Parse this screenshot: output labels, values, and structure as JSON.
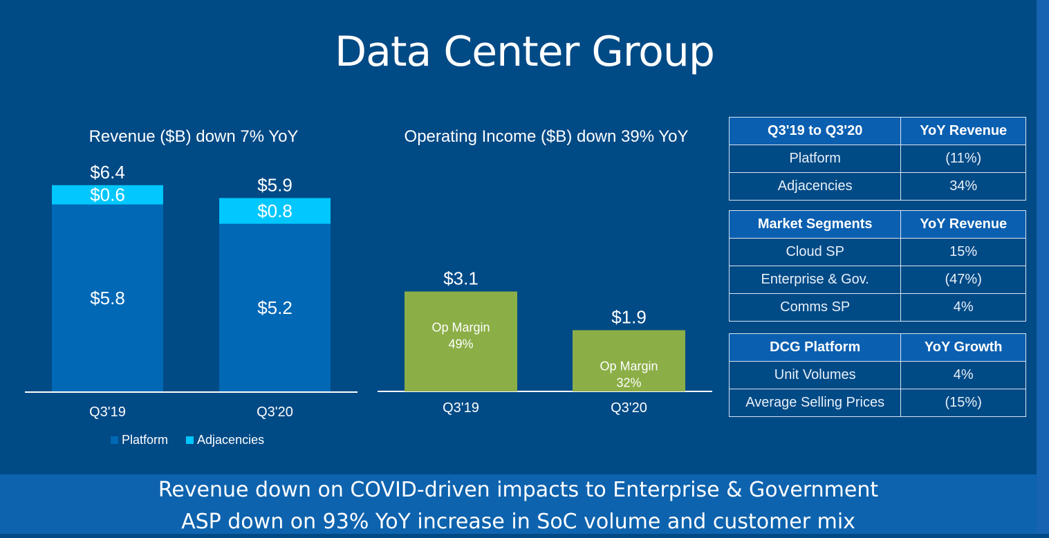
{
  "page": {
    "title": "Data Center Group"
  },
  "chart_data": [
    {
      "type": "bar",
      "stacked": true,
      "title": "Revenue ($B) down 7% YoY",
      "categories": [
        "Q3'19",
        "Q3'20"
      ],
      "series": [
        {
          "name": "Platform",
          "values": [
            5.8,
            5.2
          ],
          "labels": [
            "$5.8",
            "$5.2"
          ],
          "color": "#0068b5"
        },
        {
          "name": "Adjacencies",
          "values": [
            0.6,
            0.8
          ],
          "labels": [
            "$0.6",
            "$0.8"
          ],
          "color": "#00c7fd"
        }
      ],
      "totals": [
        "$6.4",
        "$5.9"
      ],
      "ylim": [
        0,
        7
      ],
      "grid": false,
      "legend": "bottom"
    },
    {
      "type": "bar",
      "title": "Operating Income ($B) down 39% YoY",
      "categories": [
        "Q3'19",
        "Q3'20"
      ],
      "values": [
        3.1,
        1.9
      ],
      "labels": [
        "$3.1",
        "$1.9"
      ],
      "inner_labels": [
        "Op Margin\n49%",
        "Op Margin\n32%"
      ],
      "color": "#8bae46",
      "ylim": [
        0,
        7
      ],
      "grid": false
    }
  ],
  "tables": [
    {
      "headers": [
        "Q3'19 to Q3'20",
        "YoY Revenue"
      ],
      "rows": [
        [
          "Platform",
          "(11%)"
        ],
        [
          "Adjacencies",
          "34%"
        ]
      ]
    },
    {
      "headers": [
        "Market Segments",
        "YoY Revenue"
      ],
      "rows": [
        [
          "Cloud SP",
          "15%"
        ],
        [
          "Enterprise & Gov.",
          "(47%)"
        ],
        [
          "Comms SP",
          "4%"
        ]
      ]
    },
    {
      "headers": [
        "DCG Platform",
        "YoY Growth"
      ],
      "rows": [
        [
          "Unit Volumes",
          "4%"
        ],
        [
          "Average Selling Prices",
          "(15%)"
        ]
      ]
    }
  ],
  "footer": {
    "lines": [
      "Revenue down on COVID-driven impacts to Enterprise & Government",
      "ASP down on 93% YoY increase in SoC volume and customer mix"
    ]
  }
}
